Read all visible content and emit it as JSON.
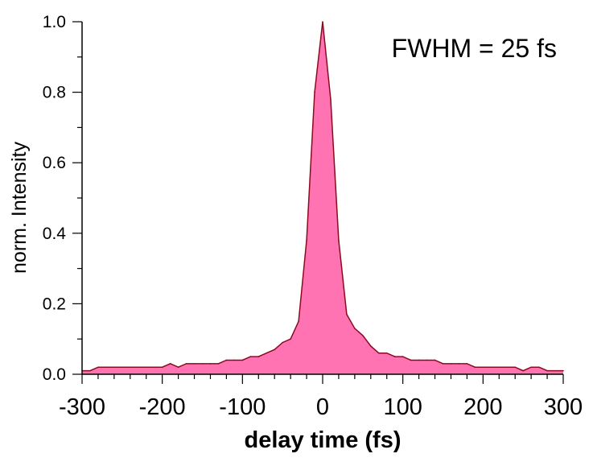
{
  "chart_data": {
    "type": "area",
    "title": "",
    "xlabel": "delay time (fs)",
    "ylabel": "norm. Intensity",
    "xlim": [
      -300,
      300
    ],
    "ylim": [
      0,
      1.0
    ],
    "x_ticks": [
      "-300",
      "-200",
      "-100",
      "0",
      "100",
      "200",
      "300"
    ],
    "y_ticks": [
      "0.0",
      "0.2",
      "0.4",
      "0.6",
      "0.8",
      "1.0"
    ],
    "annotations": [
      {
        "text": "FWHM = 25 fs",
        "position": "top-right"
      }
    ],
    "grid": false,
    "fill_color": "#ff73b3",
    "line_color": "#8b0a1e",
    "series": [
      {
        "x": [
          -300,
          -290,
          -280,
          -270,
          -260,
          -250,
          -240,
          -230,
          -220,
          -210,
          -200,
          -190,
          -180,
          -170,
          -160,
          -150,
          -140,
          -130,
          -120,
          -110,
          -100,
          -90,
          -80,
          -70,
          -60,
          -50,
          -40,
          -30,
          -20,
          -10,
          0,
          10,
          20,
          30,
          40,
          50,
          60,
          70,
          80,
          90,
          100,
          110,
          120,
          130,
          140,
          150,
          160,
          170,
          180,
          190,
          200,
          210,
          220,
          230,
          240,
          250,
          260,
          270,
          280,
          290,
          300
        ],
        "y": [
          0.01,
          0.01,
          0.02,
          0.02,
          0.02,
          0.02,
          0.02,
          0.02,
          0.02,
          0.02,
          0.02,
          0.03,
          0.02,
          0.03,
          0.03,
          0.03,
          0.03,
          0.03,
          0.04,
          0.04,
          0.04,
          0.05,
          0.05,
          0.06,
          0.07,
          0.09,
          0.1,
          0.15,
          0.38,
          0.8,
          1.0,
          0.78,
          0.38,
          0.17,
          0.13,
          0.11,
          0.08,
          0.06,
          0.06,
          0.05,
          0.05,
          0.04,
          0.04,
          0.04,
          0.04,
          0.03,
          0.03,
          0.03,
          0.03,
          0.02,
          0.02,
          0.02,
          0.02,
          0.02,
          0.02,
          0.01,
          0.02,
          0.02,
          0.01,
          0.01,
          0.01
        ]
      }
    ]
  }
}
